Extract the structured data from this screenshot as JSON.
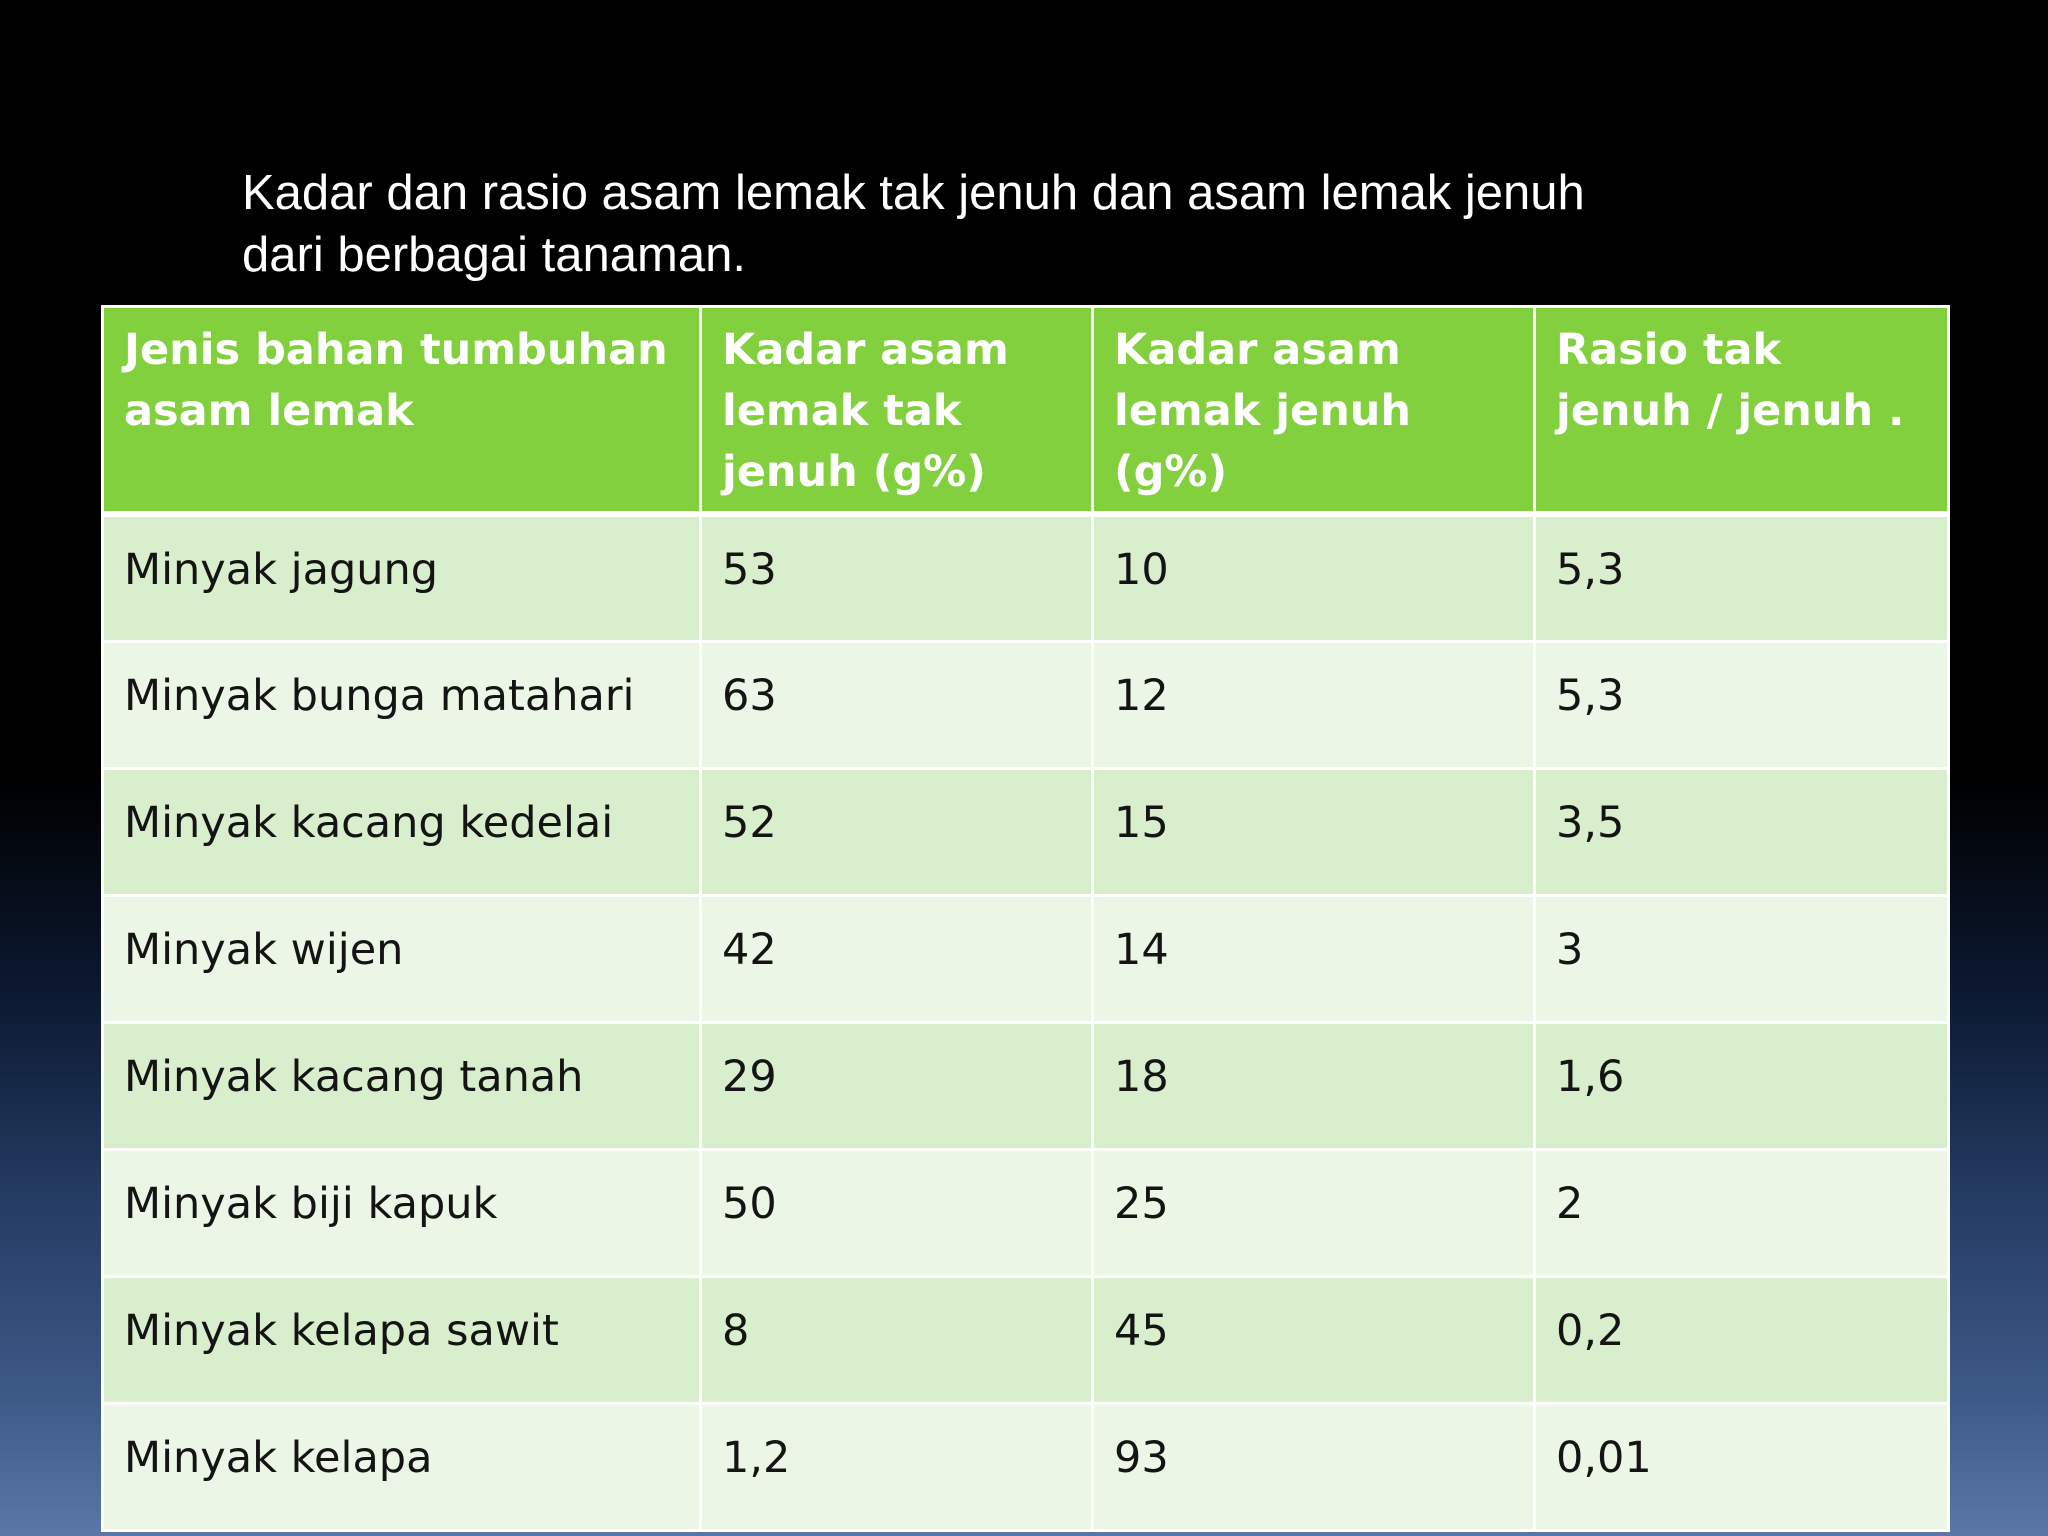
{
  "title": "Kadar dan rasio asam lemak tak jenuh dan asam lemak jenuh dari berbagai tanaman.",
  "table": {
    "headers": [
      "Jenis bahan tumbuhan asam lemak",
      "Kadar asam lemak tak jenuh (g%)",
      "Kadar asam lemak jenuh (g%)",
      "Rasio tak jenuh / jenuh ."
    ],
    "rows": [
      [
        "Minyak jagung",
        "53",
        "10",
        "5,3"
      ],
      [
        "Minyak bunga matahari",
        "63",
        "12",
        "5,3"
      ],
      [
        "Minyak kacang kedelai",
        "52",
        "15",
        "3,5"
      ],
      [
        "Minyak wijen",
        "42",
        "14",
        "3"
      ],
      [
        "Minyak kacang tanah",
        "29",
        "18",
        "1,6"
      ],
      [
        "Minyak biji kapuk",
        "50",
        "25",
        "2"
      ],
      [
        "Minyak kelapa sawit",
        "8",
        "45",
        "0,2"
      ],
      [
        "Minyak kelapa",
        "1,2",
        "93",
        "0,01"
      ]
    ]
  },
  "colors": {
    "header_background": "#82d03e",
    "row_odd": "#d9eecd",
    "row_even": "#ecf6e6",
    "slide_background_top": "#000000",
    "slide_background_bottom": "#5a77a7"
  }
}
